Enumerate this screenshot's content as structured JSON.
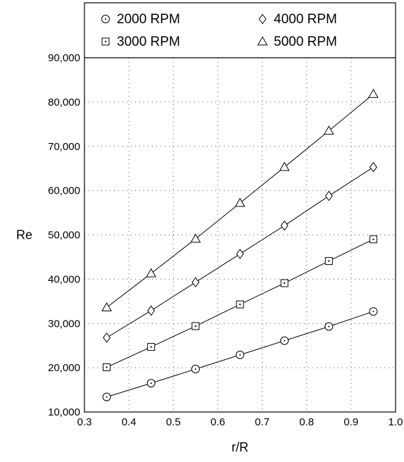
{
  "chart_data": {
    "type": "line",
    "title": "",
    "xlabel": "r/R",
    "ylabel": "Re",
    "xlim": [
      0.3,
      1.0
    ],
    "ylim": [
      10000,
      90000
    ],
    "x_ticks": [
      "0.3",
      "0.4",
      "0.5",
      "0.6",
      "0.7",
      "0.8",
      "0.9",
      "1.0"
    ],
    "y_ticks": [
      "10,000",
      "20,000",
      "30,000",
      "40,000",
      "50,000",
      "60,000",
      "70,000",
      "80,000",
      "90,000"
    ],
    "grid": "dotted",
    "legend_position": "top",
    "x": [
      0.35,
      0.45,
      0.55,
      0.65,
      0.75,
      0.85,
      0.95
    ],
    "series": [
      {
        "name": "2000 RPM",
        "marker": "circle",
        "values": [
          13400,
          16500,
          19700,
          22900,
          26100,
          29300,
          32700
        ]
      },
      {
        "name": "3000 RPM",
        "marker": "square",
        "values": [
          20100,
          24700,
          29400,
          34300,
          39100,
          44100,
          49000
        ]
      },
      {
        "name": "4000 RPM",
        "marker": "diamond",
        "values": [
          26800,
          32900,
          39300,
          45700,
          52100,
          58800,
          65300
        ]
      },
      {
        "name": "5000 RPM",
        "marker": "triangle",
        "values": [
          33600,
          41300,
          49100,
          57200,
          65300,
          73500,
          81800
        ]
      }
    ]
  }
}
